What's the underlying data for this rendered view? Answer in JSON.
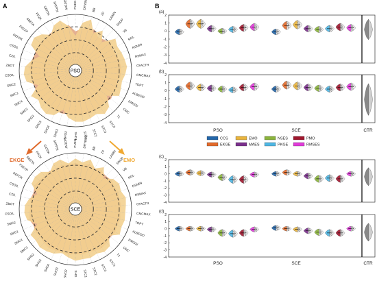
{
  "panel_a_label": "A",
  "panel_b_label": "B",
  "radar_pso_label": "PSO",
  "radar_sce_label": "SCE",
  "ekge_label": "EKGE",
  "emo_label": "EMO",
  "colors": {
    "fill": "#f3d08f",
    "fill_alt": "#e2a27b",
    "ekge_arrow": "#e06a2b",
    "emo_arrow": "#f0a830",
    "grid": "#999999",
    "dash": "#333333"
  },
  "chart_data": [
    {
      "type": "radar",
      "center_label": "PSO",
      "parameters": [
        "PUEG",
        "DRYBMC",
        "BB",
        "Z0",
        "LAIMN",
        "SNUP",
        "VB",
        "RGL",
        "RSMIN",
        "RSMAX",
        "CFACTR",
        "CMCMAX",
        "TOPT",
        "ALBEDO",
        "EMISSI",
        "CMC",
        "T1",
        "STC4",
        "STC3",
        "STC2",
        "STC1",
        "SHO1",
        "SHO2",
        "SHO3",
        "SHO4",
        "SHG3",
        "SHG2",
        "SMC3",
        "SMC4",
        "SMC1",
        "SMC2",
        "CSOIL",
        "ZBOT",
        "CZIL",
        "CSOIL",
        "REFDK",
        "FXEXP",
        "SBETA",
        "FRZK",
        "SATDK",
        "SATPSI",
        "SATDW"
      ],
      "series_alpha": [
        0.62,
        0.86,
        0.95,
        0.74,
        0.86,
        0.69,
        0.91,
        0.86,
        0.88,
        0.9,
        0.92,
        0.89,
        0.85,
        0.87,
        0.9,
        0.72,
        0.88,
        0.93,
        0.86,
        0.89,
        0.92,
        0.91,
        0.85,
        0.73,
        0.88,
        0.93,
        0.9,
        0.84,
        0.91,
        0.71,
        0.89,
        0.92,
        0.9,
        0.8,
        0.69,
        0.91,
        0.94,
        0.88,
        0.77,
        0.89,
        0.93,
        0.8
      ],
      "series_beta": [
        0.7,
        0.75,
        0.8,
        0.8,
        0.72,
        0.75,
        0.8,
        0.76,
        0.78,
        0.8,
        0.82,
        0.82,
        0.78,
        0.8,
        0.78,
        0.81,
        0.77,
        0.8,
        0.79,
        0.8,
        0.8,
        0.8,
        0.78,
        0.8,
        0.8,
        0.8,
        0.78,
        0.8,
        0.8,
        0.78,
        0.8,
        0.8,
        0.82,
        0.8,
        0.78,
        0.8,
        0.8,
        0.78,
        0.8,
        0.8,
        0.78,
        0.82
      ]
    },
    {
      "type": "radar",
      "center_label": "SCE",
      "parameters": [
        "PUEG",
        "DRYBMC",
        "BB",
        "Z0",
        "LAIMN",
        "SNUP",
        "VB",
        "RGL",
        "RSMIN",
        "RSMAX",
        "CFACTR",
        "CMCMAX",
        "TOPT",
        "ALBEDO",
        "EMISSI",
        "CMC",
        "T1",
        "STC4",
        "STC3",
        "STC2",
        "STC1",
        "SHO1",
        "SHO2",
        "SHO3",
        "SHO4",
        "SHG3",
        "SHG2",
        "SMC3",
        "SMC4",
        "SMC1",
        "SMC2",
        "CSOIL",
        "ZBOT",
        "CZIL",
        "CSOIL",
        "REFDK",
        "FXEXP",
        "SBETA",
        "FRZK",
        "SATDK",
        "SATPSI",
        "SATDW"
      ],
      "series_alpha": [
        0.9,
        0.84,
        0.92,
        0.8,
        0.9,
        0.74,
        0.86,
        0.9,
        0.87,
        0.92,
        0.9,
        0.89,
        0.9,
        0.88,
        0.91,
        0.76,
        0.9,
        0.92,
        0.88,
        0.91,
        0.9,
        0.92,
        0.87,
        0.82,
        0.88,
        0.91,
        0.93,
        0.9,
        0.92,
        0.73,
        0.88,
        0.91,
        0.9,
        0.84,
        0.73,
        0.9,
        0.92,
        0.9,
        0.8,
        0.9,
        0.92,
        0.82
      ],
      "series_beta": [
        0.82,
        0.8,
        0.84,
        0.8,
        0.82,
        0.8,
        0.82,
        0.8,
        0.82,
        0.8,
        0.82,
        0.8,
        0.82,
        0.8,
        0.82,
        0.8,
        0.82,
        0.84,
        0.82,
        0.8,
        0.82,
        0.8,
        0.82,
        0.8,
        0.82,
        0.84,
        0.82,
        0.8,
        0.82,
        0.8,
        0.84,
        0.82,
        0.8,
        0.82,
        0.8,
        0.84,
        0.82,
        0.8,
        0.82,
        0.8,
        0.82,
        0.8
      ]
    },
    {
      "type": "violin",
      "panel": "(a)",
      "ylim": [
        -4,
        2
      ],
      "yticks": [
        -4,
        -3,
        -2,
        -1,
        0,
        1,
        2
      ],
      "groups": [
        "PSO",
        "SCE"
      ],
      "ctr_label": "CTR",
      "series": [
        {
          "name": "CCS",
          "color": "#2266aa",
          "values": [
            -0.1,
            -0.1
          ]
        },
        {
          "name": "EKGE",
          "color": "#e36a2a",
          "values": [
            0.9,
            0.7
          ]
        },
        {
          "name": "EMO",
          "color": "#e9b43c",
          "values": [
            0.9,
            0.8
          ]
        },
        {
          "name": "MAES",
          "color": "#7a2f8c",
          "values": [
            0.3,
            0.3
          ]
        },
        {
          "name": "NSES",
          "color": "#8ab43b",
          "values": [
            0.0,
            0.2
          ]
        },
        {
          "name": "PKGE",
          "color": "#4eb6e3",
          "values": [
            0.2,
            0.3
          ]
        },
        {
          "name": "PMO",
          "color": "#a0162d",
          "values": [
            0.4,
            0.5
          ]
        },
        {
          "name": "RMSES",
          "color": "#e03ad9",
          "values": [
            0.5,
            0.4
          ]
        }
      ],
      "ctr_value": 0.2
    },
    {
      "type": "violin",
      "panel": "(b)",
      "ylim": [
        -4,
        2
      ],
      "yticks": [
        -4,
        -3,
        -2,
        -1,
        0,
        1,
        2
      ],
      "groups": [
        "PSO",
        "SCE"
      ],
      "ctr_label": "CTR",
      "series": [
        {
          "name": "CCS",
          "color": "#2266aa",
          "values": [
            0.2,
            0.2
          ]
        },
        {
          "name": "EKGE",
          "color": "#e36a2a",
          "values": [
            0.6,
            0.7
          ]
        },
        {
          "name": "EMO",
          "color": "#e9b43c",
          "values": [
            0.4,
            0.6
          ]
        },
        {
          "name": "MAES",
          "color": "#7a2f8c",
          "values": [
            0.3,
            0.4
          ]
        },
        {
          "name": "NSES",
          "color": "#8ab43b",
          "values": [
            0.2,
            0.3
          ]
        },
        {
          "name": "PKGE",
          "color": "#4eb6e3",
          "values": [
            0.1,
            0.2
          ]
        },
        {
          "name": "PMO",
          "color": "#a0162d",
          "values": [
            0.4,
            0.4
          ]
        },
        {
          "name": "RMSES",
          "color": "#e03ad9",
          "values": [
            0.5,
            0.5
          ]
        }
      ],
      "ctr_value": -1.1
    },
    {
      "type": "violin",
      "panel": "(c)",
      "ylim": [
        -4,
        2
      ],
      "yticks": [
        -4,
        -3,
        -2,
        -1,
        0,
        1,
        2
      ],
      "groups": [
        "PSO",
        "SCE"
      ],
      "ctr_label": "CTR",
      "series": [
        {
          "name": "CCS",
          "color": "#2266aa",
          "values": [
            0.0,
            0.0
          ]
        },
        {
          "name": "EKGE",
          "color": "#e36a2a",
          "values": [
            0.2,
            0.2
          ]
        },
        {
          "name": "EMO",
          "color": "#e9b43c",
          "values": [
            0.1,
            0.0
          ]
        },
        {
          "name": "MAES",
          "color": "#7a2f8c",
          "values": [
            -0.1,
            -0.3
          ]
        },
        {
          "name": "NSES",
          "color": "#8ab43b",
          "values": [
            -0.5,
            -0.7
          ]
        },
        {
          "name": "PKGE",
          "color": "#4eb6e3",
          "values": [
            -0.8,
            -0.6
          ]
        },
        {
          "name": "PMO",
          "color": "#a0162d",
          "values": [
            -0.8,
            -0.7
          ]
        },
        {
          "name": "RMSES",
          "color": "#e03ad9",
          "values": [
            -0.1,
            0.0
          ]
        }
      ],
      "ctr_value": -0.4
    },
    {
      "type": "violin",
      "panel": "(d)",
      "ylim": [
        -4,
        2
      ],
      "yticks": [
        -4,
        -3,
        -2,
        -1,
        0,
        1,
        2
      ],
      "groups": [
        "PSO",
        "SCE"
      ],
      "ctr_label": "CTR",
      "series": [
        {
          "name": "CCS",
          "color": "#2266aa",
          "values": [
            0.0,
            0.1
          ]
        },
        {
          "name": "EKGE",
          "color": "#e36a2a",
          "values": [
            0.0,
            0.0
          ]
        },
        {
          "name": "EMO",
          "color": "#e9b43c",
          "values": [
            0.0,
            -0.1
          ]
        },
        {
          "name": "MAES",
          "color": "#7a2f8c",
          "values": [
            -0.1,
            -0.3
          ]
        },
        {
          "name": "NSES",
          "color": "#8ab43b",
          "values": [
            -0.6,
            -0.5
          ]
        },
        {
          "name": "PKGE",
          "color": "#4eb6e3",
          "values": [
            -0.7,
            -0.6
          ]
        },
        {
          "name": "PMO",
          "color": "#a0162d",
          "values": [
            -0.6,
            -0.6
          ]
        },
        {
          "name": "RMSES",
          "color": "#e03ad9",
          "values": [
            -0.1,
            0.0
          ]
        }
      ],
      "ctr_value": -0.5
    }
  ]
}
